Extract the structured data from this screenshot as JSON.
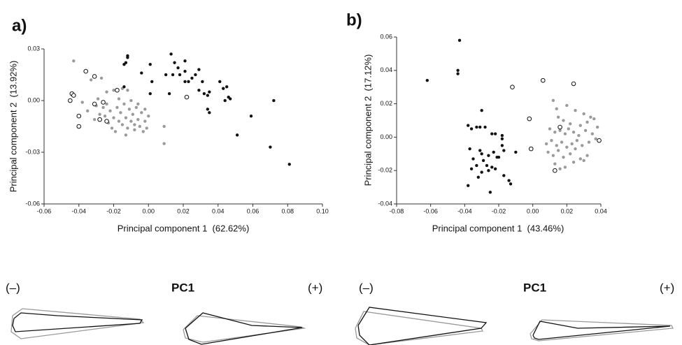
{
  "chart_data": [
    {
      "type": "scatter",
      "panel_label": "a)",
      "x_label": "Principal component 1  (62.62%)",
      "y_label": "Principal component 2  (13.92%)",
      "xlim": [
        -0.06,
        0.1
      ],
      "ylim": [
        -0.06,
        0.03
      ],
      "xticks": [
        -0.06,
        -0.04,
        -0.02,
        {
          "value": 0,
          "label": "0.00"
        },
        0.02,
        0.04,
        0.06,
        0.08,
        {
          "value": 0.1,
          "label": "0.10"
        }
      ],
      "yticks": [
        {
          "value": 0.03,
          "label": "0.03"
        },
        {
          "value": 0,
          "label": "0.00"
        },
        -0.03,
        -0.06
      ],
      "series": [
        {
          "color": "#9a9a9a",
          "marker": "filled",
          "x": [
            -0.043,
            -0.033,
            -0.027,
            -0.024,
            -0.02,
            -0.015,
            -0.012,
            -0.038,
            -0.035,
            -0.03,
            -0.028,
            -0.026,
            -0.024,
            -0.022,
            -0.02,
            -0.018,
            -0.017,
            -0.016,
            -0.015,
            -0.014,
            -0.013,
            -0.012,
            -0.011,
            -0.01,
            -0.009,
            -0.008,
            -0.007,
            -0.006,
            -0.005,
            -0.004,
            -0.003,
            -0.002,
            -0.001,
            0.0,
            -0.021,
            -0.019,
            -0.023,
            -0.025,
            -0.017,
            -0.01,
            -0.006,
            0.009,
            0.009,
            -0.029,
            -0.031,
            -0.013,
            -0.008,
            -0.002
          ],
          "values": [
            0.023,
            0.012,
            0.013,
            0.005,
            0.006,
            0.007,
            0.006,
            -0.001,
            -0.006,
            -0.003,
            -0.008,
            -0.004,
            -0.002,
            -0.006,
            -0.01,
            -0.004,
            -0.012,
            -0.007,
            -0.014,
            -0.002,
            -0.01,
            -0.016,
            -0.005,
            -0.012,
            -0.008,
            -0.017,
            -0.004,
            -0.011,
            -0.015,
            -0.007,
            -0.018,
            -0.012,
            -0.016,
            -0.009,
            -0.016,
            -0.018,
            -0.013,
            -0.009,
            0.001,
            0.0,
            -0.002,
            -0.015,
            -0.025,
            0.001,
            -0.011,
            -0.02,
            -0.014,
            -0.005
          ]
        },
        {
          "color": "#111111",
          "marker": "filled",
          "x": [
            -0.012,
            -0.012,
            -0.013,
            -0.014,
            -0.014,
            -0.004,
            0.001,
            0.002,
            0.001,
            0.013,
            0.014,
            0.01,
            0.012,
            0.015,
            0.017,
            0.018,
            0.021,
            0.021,
            0.021,
            0.023,
            0.025,
            0.027,
            0.029,
            0.029,
            0.031,
            0.032,
            0.034,
            0.035,
            0.034,
            0.035,
            0.041,
            0.043,
            0.044,
            0.045,
            0.046,
            0.047,
            0.059,
            0.051,
            0.07,
            0.072,
            0.081
          ],
          "values": [
            0.026,
            0.025,
            0.022,
            0.021,
            0.008,
            0.016,
            0.021,
            0.011,
            0.004,
            0.027,
            0.015,
            0.015,
            0.004,
            0.022,
            0.019,
            0.015,
            0.011,
            0.023,
            0.017,
            0.011,
            0.013,
            0.015,
            0.018,
            0.006,
            0.011,
            0.004,
            0.003,
            0.005,
            -0.005,
            -0.007,
            0.011,
            0.007,
            0.0,
            0.008,
            0.002,
            0.001,
            -0.009,
            -0.02,
            -0.027,
            0.0,
            -0.037
          ]
        },
        {
          "color": "#111111",
          "marker": "open",
          "x": [
            -0.045,
            -0.044,
            -0.043,
            -0.04,
            -0.04,
            -0.036,
            -0.031,
            -0.031,
            -0.028,
            -0.026,
            -0.024,
            -0.018,
            0.022
          ],
          "values": [
            0.0,
            0.004,
            0.003,
            -0.009,
            -0.015,
            0.017,
            0.014,
            -0.002,
            -0.011,
            -0.001,
            -0.012,
            0.006,
            0.002
          ]
        }
      ]
    },
    {
      "type": "scatter",
      "panel_label": "b)",
      "x_label": "Principal component 1  (43.46%)",
      "y_label": "Principal component 2  (17.12%)",
      "xlim": [
        -0.08,
        0.04
      ],
      "ylim": [
        -0.04,
        0.06
      ],
      "xticks": [
        -0.08,
        -0.06,
        -0.04,
        -0.02,
        {
          "value": 0,
          "label": "0.00"
        },
        0.02,
        0.04
      ],
      "yticks": [
        0.06,
        0.04,
        0.02,
        {
          "value": 0,
          "label": "0.00"
        },
        -0.02,
        -0.04
      ],
      "series": [
        {
          "color": "#9a9a9a",
          "marker": "filled",
          "x": [
            0.012,
            0.014,
            0.02,
            0.025,
            0.03,
            0.034,
            0.015,
            0.018,
            0.022,
            0.028,
            0.032,
            0.036,
            0.01,
            0.013,
            0.016,
            0.019,
            0.021,
            0.024,
            0.027,
            0.031,
            0.035,
            0.038,
            0.008,
            0.011,
            0.014,
            0.017,
            0.02,
            0.023,
            0.026,
            0.029,
            0.033,
            0.037,
            0.009,
            0.012,
            0.015,
            0.018,
            0.022,
            0.025,
            0.028,
            0.032,
            0.013,
            0.019,
            0.024,
            0.03,
            0.016
          ],
          "values": [
            0.022,
            0.017,
            0.019,
            0.016,
            0.014,
            0.012,
            0.012,
            0.01,
            0.008,
            0.007,
            0.009,
            0.011,
            0.005,
            0.003,
            0.004,
            0.002,
            0.005,
            0.003,
            0.001,
            0.004,
            0.002,
            0.006,
            -0.004,
            -0.002,
            -0.005,
            -0.003,
            -0.006,
            -0.004,
            -0.002,
            -0.005,
            -0.003,
            -0.001,
            -0.009,
            -0.011,
            -0.008,
            -0.012,
            -0.01,
            -0.007,
            -0.013,
            -0.011,
            -0.016,
            -0.018,
            -0.015,
            -0.014,
            -0.019
          ]
        },
        {
          "color": "#111111",
          "marker": "filled",
          "x": [
            -0.062,
            -0.043,
            -0.044,
            -0.044,
            -0.03,
            -0.038,
            -0.036,
            -0.033,
            -0.031,
            -0.028,
            -0.024,
            -0.022,
            -0.018,
            -0.018,
            -0.018,
            -0.037,
            -0.031,
            -0.03,
            -0.026,
            -0.023,
            -0.017,
            -0.01,
            -0.035,
            -0.029,
            -0.021,
            -0.036,
            -0.033,
            -0.027,
            -0.024,
            -0.022,
            -0.03,
            -0.026,
            -0.032,
            -0.017,
            -0.014,
            -0.013,
            -0.038,
            -0.025,
            -0.02
          ],
          "values": [
            0.034,
            0.058,
            0.04,
            0.038,
            0.016,
            0.007,
            0.005,
            0.006,
            0.006,
            0.006,
            0.002,
            0.002,
            0.001,
            -0.001,
            -0.005,
            -0.007,
            -0.008,
            -0.01,
            -0.011,
            -0.009,
            -0.008,
            -0.009,
            -0.013,
            -0.014,
            -0.012,
            -0.019,
            -0.017,
            -0.017,
            -0.018,
            -0.019,
            -0.021,
            -0.02,
            -0.024,
            -0.023,
            -0.026,
            -0.028,
            -0.029,
            -0.033,
            -0.012
          ]
        },
        {
          "color": "#111111",
          "marker": "open",
          "x": [
            -0.012,
            0.006,
            0.024,
            -0.002,
            0.016,
            -0.001,
            0.039,
            0.013
          ],
          "values": [
            0.03,
            0.034,
            0.032,
            0.011,
            0.006,
            -0.007,
            -0.002,
            -0.02
          ]
        }
      ]
    }
  ],
  "shape_panels": [
    {
      "minus": "(–)",
      "title": "PC1",
      "plus": "(+)"
    },
    {
      "minus": "(–)",
      "title": "PC1",
      "plus": "(+)"
    }
  ]
}
